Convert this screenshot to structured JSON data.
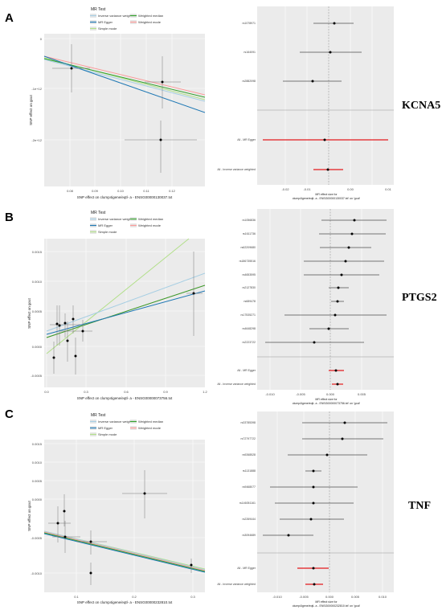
{
  "panels": [
    {
      "letter": "A",
      "gene": "KCNA5",
      "scatter": {
        "legend_title": "MR Test",
        "legend_items": [
          {
            "label": "Inverse variance weighted",
            "color": "#a6cee3"
          },
          {
            "label": "MR Egger",
            "color": "#1f78b4"
          },
          {
            "label": "Simple mode",
            "color": "#b2df8a"
          },
          {
            "label": "Weighted median",
            "color": "#33a02c"
          },
          {
            "label": "Weighted mode",
            "color": "#fb9a99"
          }
        ],
        "xlabel": "SNP effect on clump4igene/eqtl- a - ENSG00000130037.txt",
        "ylabel": "SNP effect on gout",
        "xticks": [
          "0.08",
          "0.09",
          "0.10",
          "0.11",
          "0.12"
        ],
        "yticks": [
          "0",
          "-1e+12",
          "-2e+12"
        ]
      },
      "forest": {
        "snps": [
          "rs1078971",
          "rs164091",
          "rs2882098"
        ],
        "summary": [
          "All - MR Egger",
          "All - Inverse variance weighted"
        ],
        "xlabel_line1": "MR effect size for",
        "xlabel_line2": "clump4igene/eqtl- a - ENSG00000130037.txt' on 'gout'",
        "xticks": [
          "-0.02",
          "-0.01",
          "0.00",
          "0.01"
        ]
      }
    },
    {
      "letter": "B",
      "gene": "PTGS2",
      "scatter": {
        "legend_title": "MR Test",
        "legend_items": [
          {
            "label": "Inverse variance weighted",
            "color": "#a6cee3"
          },
          {
            "label": "MR Egger",
            "color": "#1f78b4"
          },
          {
            "label": "Simple mode",
            "color": "#b2df8a"
          },
          {
            "label": "Weighted median",
            "color": "#33a02c"
          },
          {
            "label": "Weighted mode",
            "color": "#fb9a99"
          }
        ],
        "xlabel": "SNP effect on clump4igene/eqtl- a - ENSG00000073756.txt",
        "ylabel": "SNP effect on gout",
        "xticks": [
          "0.0",
          "0.3",
          "0.6",
          "0.9",
          "1.2"
        ],
        "yticks": [
          "0.0015",
          "0.0010",
          "0.0005",
          "0.0000",
          "-0.0005"
        ]
      },
      "forest": {
        "snps": [
          "rs1056836",
          "rs1611736",
          "rs62209680",
          "rs186735516",
          "rs4653595",
          "rs2127830",
          "rs689478",
          "rs17535271",
          "rs4648298",
          "rs2223722"
        ],
        "summary": [
          "All - MR Egger",
          "All - Inverse variance weighted"
        ],
        "xlabel_line1": "MR effect size for",
        "xlabel_line2": "clump4igene/eqtl- a - ENSG00000073756.txt' on 'gout'",
        "xticks": [
          "-0.010",
          "-0.005",
          "0.000",
          "0.005"
        ]
      }
    },
    {
      "letter": "C",
      "gene": "TNF",
      "scatter": {
        "legend_title": "MR Test",
        "legend_items": [
          {
            "label": "Inverse variance weighted",
            "color": "#a6cee3"
          },
          {
            "label": "MR Egger",
            "color": "#1f78b4"
          },
          {
            "label": "Simple mode",
            "color": "#b2df8a"
          },
          {
            "label": "Weighted median",
            "color": "#33a02c"
          },
          {
            "label": "Weighted mode",
            "color": "#fb9a99"
          }
        ],
        "xlabel": "SNP effect on clump4igene/eqtl- a - ENSG00000232810.txt",
        "ylabel": "SNP effect on gout",
        "xticks": [
          "0.1",
          "0.2",
          "0.3"
        ],
        "yticks": [
          "0.0015",
          "0.0010",
          "0.0005",
          "0.0000",
          "-0.0005",
          "-0.0010"
        ]
      },
      "forest": {
        "snps": [
          "rs33785398",
          "rs72797722",
          "rs9268528",
          "rs1131888",
          "rs9468077",
          "rs146051161",
          "rs2269444",
          "rs3094689"
        ],
        "summary": [
          "All - MR Egger",
          "All - Inverse variance weighted"
        ],
        "xlabel_line1": "MR effect size for",
        "xlabel_line2": "clump4igene/eqtl- a - ENSG00000232810.txt' on 'gout'",
        "xticks": [
          "-0.010",
          "-0.005",
          "0.000",
          "0.005",
          "0.010"
        ]
      }
    }
  ]
}
